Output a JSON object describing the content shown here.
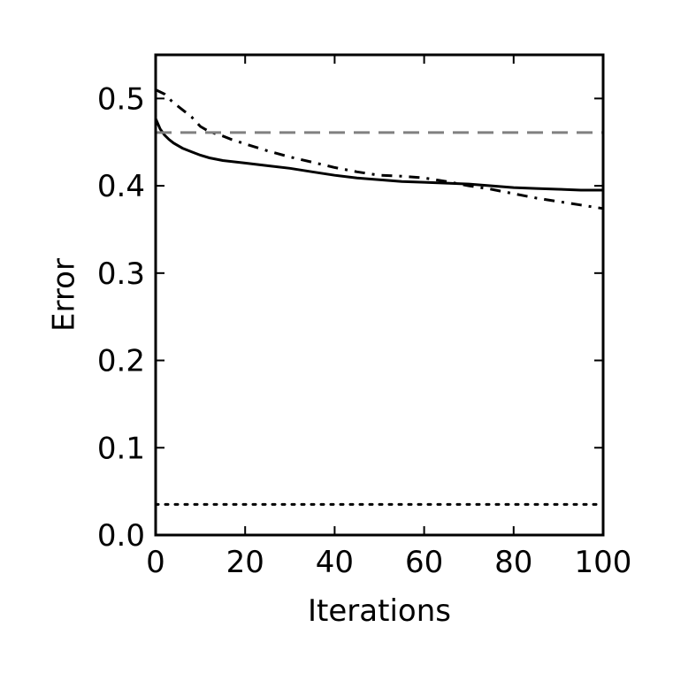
{
  "chart_data": {
    "type": "line",
    "title": "",
    "xlabel": "Iterations",
    "ylabel": "Error",
    "xlim": [
      0,
      100
    ],
    "ylim": [
      0.0,
      0.55
    ],
    "xticks": [
      0,
      20,
      40,
      60,
      80,
      100
    ],
    "xtick_labels": [
      "0",
      "20",
      "40",
      "60",
      "80",
      "100"
    ],
    "yticks": [
      0.0,
      0.1,
      0.2,
      0.3,
      0.4,
      0.5
    ],
    "ytick_labels": [
      "0.0",
      "0.1",
      "0.2",
      "0.3",
      "0.4",
      "0.5"
    ],
    "grid": false,
    "series": [
      {
        "style": "solid",
        "color": "#000000",
        "x": [
          0,
          1,
          2,
          3,
          4,
          5,
          6,
          8,
          10,
          12,
          15,
          20,
          25,
          30,
          35,
          40,
          45,
          50,
          55,
          60,
          65,
          70,
          75,
          80,
          85,
          90,
          95,
          100
        ],
        "y": [
          0.477,
          0.465,
          0.458,
          0.453,
          0.449,
          0.446,
          0.443,
          0.439,
          0.435,
          0.432,
          0.429,
          0.426,
          0.423,
          0.42,
          0.416,
          0.412,
          0.409,
          0.407,
          0.405,
          0.404,
          0.403,
          0.402,
          0.4,
          0.398,
          0.397,
          0.396,
          0.395,
          0.395
        ]
      },
      {
        "style": "dashdot",
        "color": "#000000",
        "x": [
          0,
          2,
          4,
          6,
          8,
          10,
          12,
          15,
          17,
          20,
          25,
          30,
          35,
          40,
          45,
          50,
          55,
          60,
          65,
          70,
          75,
          80,
          85,
          90,
          95,
          100
        ],
        "y": [
          0.51,
          0.505,
          0.495,
          0.487,
          0.479,
          0.468,
          0.462,
          0.457,
          0.453,
          0.448,
          0.44,
          0.433,
          0.427,
          0.421,
          0.416,
          0.412,
          0.411,
          0.409,
          0.405,
          0.4,
          0.396,
          0.391,
          0.386,
          0.382,
          0.378,
          0.374
        ]
      },
      {
        "style": "dashed",
        "color": "#808080",
        "x": [
          0,
          100
        ],
        "y": [
          0.461,
          0.461
        ]
      },
      {
        "style": "dotted",
        "color": "#000000",
        "x": [
          0,
          100
        ],
        "y": [
          0.035,
          0.035
        ]
      }
    ]
  }
}
